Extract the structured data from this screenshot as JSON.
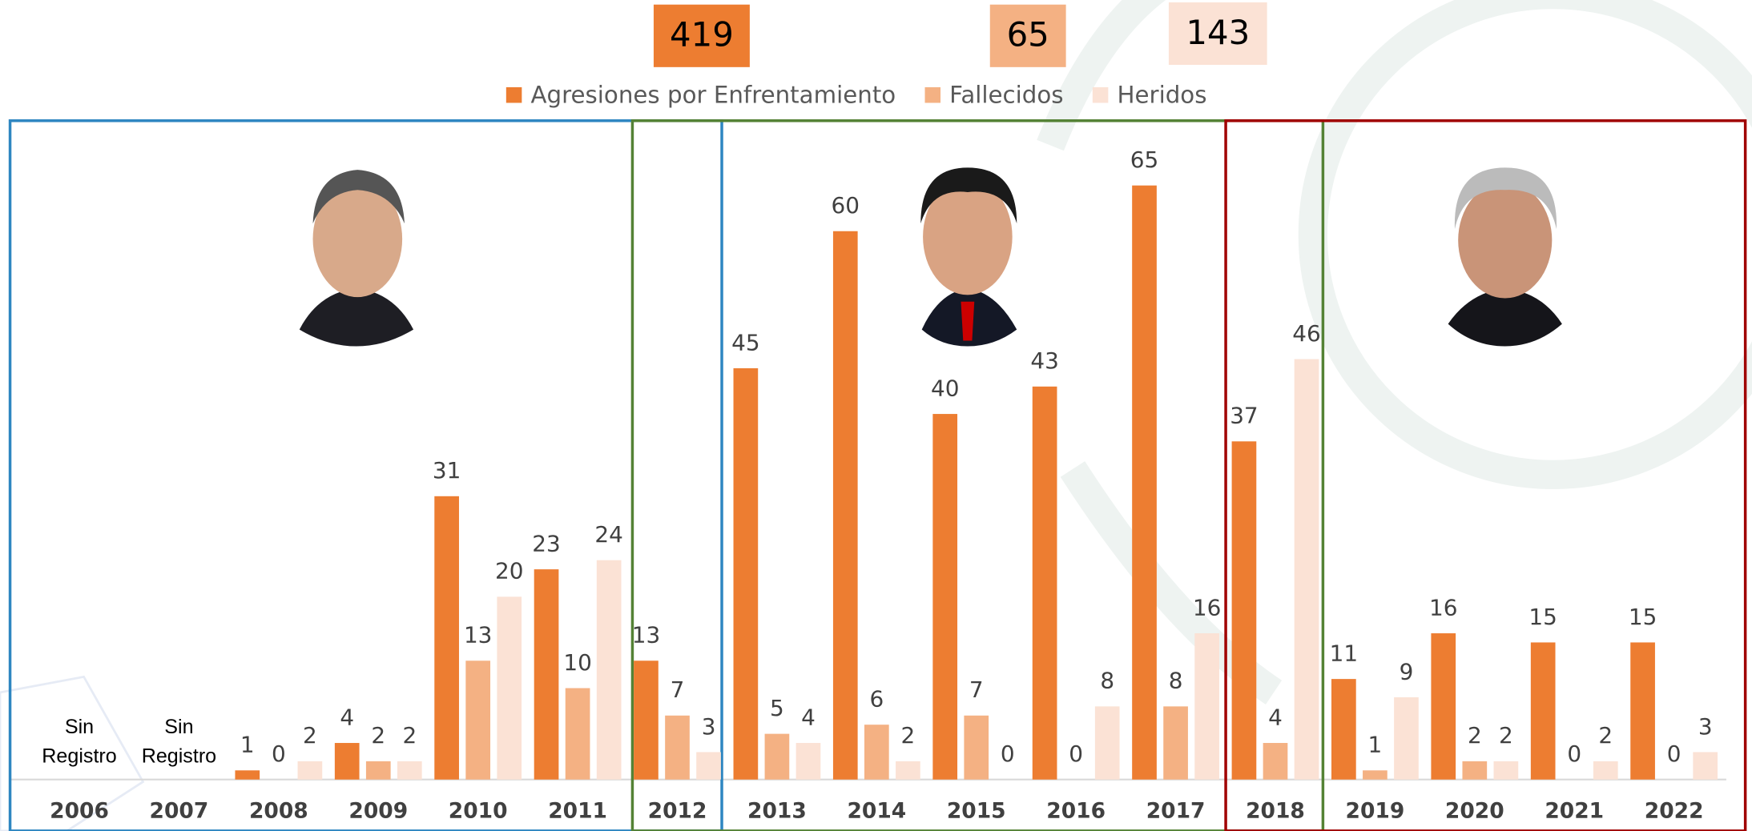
{
  "chart_data": {
    "type": "bar",
    "totals": [
      419,
      65,
      143
    ],
    "categories": [
      "2006",
      "2007",
      "2008",
      "2009",
      "2010",
      "2011",
      "2012",
      "2013",
      "2014",
      "2015",
      "2016",
      "2017",
      "2018",
      "2019",
      "2020",
      "2021",
      "2022"
    ],
    "series": [
      {
        "name": "Agresiones por Enfrentamiento",
        "color": "#ed7d31",
        "values": [
          null,
          null,
          1,
          4,
          31,
          23,
          13,
          45,
          60,
          40,
          43,
          65,
          37,
          11,
          16,
          15,
          15
        ]
      },
      {
        "name": "Fallecidos",
        "color": "#f4b183",
        "values": [
          null,
          null,
          0,
          2,
          13,
          10,
          7,
          5,
          6,
          7,
          0,
          8,
          4,
          1,
          2,
          0,
          0
        ]
      },
      {
        "name": "Heridos",
        "color": "#fbe2d5",
        "values": [
          null,
          null,
          2,
          2,
          20,
          24,
          3,
          4,
          2,
          0,
          8,
          16,
          46,
          9,
          2,
          2,
          3
        ]
      }
    ],
    "annotations": [
      [
        "Sin",
        "Registro"
      ],
      [
        "Sin",
        "Registro"
      ]
    ],
    "ylim": [
      0,
      65
    ]
  }
}
